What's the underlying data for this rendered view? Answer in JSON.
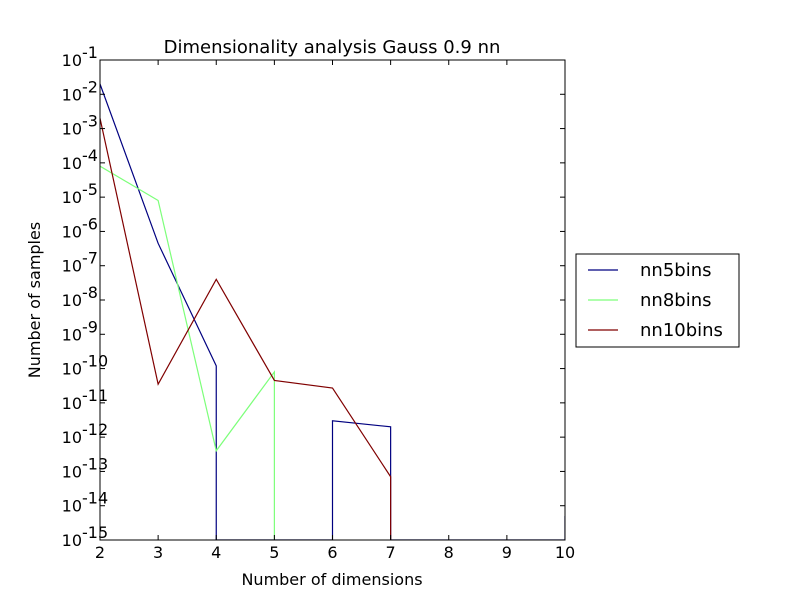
{
  "chart_data": {
    "type": "line",
    "title": "Dimensionality analysis Gauss 0.9 nn",
    "xlabel": "Number of dimensions",
    "ylabel": "Number of samples",
    "xlim": [
      2,
      10
    ],
    "ylim_exp": [
      -15,
      -1
    ],
    "y_scale": "log",
    "grid": false,
    "legend_position": "outside-right",
    "x_ticks": [
      {
        "value": 2,
        "label": "2"
      },
      {
        "value": 3,
        "label": "3"
      },
      {
        "value": 4,
        "label": "4"
      },
      {
        "value": 5,
        "label": "5"
      },
      {
        "value": 6,
        "label": "6"
      },
      {
        "value": 7,
        "label": "7"
      },
      {
        "value": 8,
        "label": "8"
      },
      {
        "value": 9,
        "label": "9"
      },
      {
        "value": 10,
        "label": "10"
      }
    ],
    "y_ticks": [
      {
        "exp": -1,
        "base": "10",
        "sup": "-1"
      },
      {
        "exp": -2,
        "base": "10",
        "sup": "-2"
      },
      {
        "exp": -3,
        "base": "10",
        "sup": "-3"
      },
      {
        "exp": -4,
        "base": "10",
        "sup": "-4"
      },
      {
        "exp": -5,
        "base": "10",
        "sup": "-5"
      },
      {
        "exp": -6,
        "base": "10",
        "sup": "-6"
      },
      {
        "exp": -7,
        "base": "10",
        "sup": "-7"
      },
      {
        "exp": -8,
        "base": "10",
        "sup": "-8"
      },
      {
        "exp": -9,
        "base": "10",
        "sup": "-9"
      },
      {
        "exp": -10,
        "base": "10",
        "sup": "-10"
      },
      {
        "exp": -11,
        "base": "10",
        "sup": "-11"
      },
      {
        "exp": -12,
        "base": "10",
        "sup": "-12"
      },
      {
        "exp": -13,
        "base": "10",
        "sup": "-13"
      },
      {
        "exp": -14,
        "base": "10",
        "sup": "-14"
      },
      {
        "exp": -15,
        "base": "10",
        "sup": "-15"
      }
    ],
    "series": [
      {
        "name": "nn5bins",
        "color": "#000080",
        "points": [
          {
            "x": 2,
            "y": 0.02
          },
          {
            "x": 3,
            "y": 4.5e-07
          },
          {
            "x": 4,
            "y": 1.2e-10
          },
          {
            "x": 4,
            "y": 1e-15
          },
          {
            "x": 6,
            "y": 1e-15
          },
          {
            "x": 6,
            "y": 3e-12
          },
          {
            "x": 7,
            "y": 2e-12
          },
          {
            "x": 7,
            "y": 1e-15
          },
          {
            "x": 10,
            "y": 1e-15
          },
          {
            "x": 10,
            "y": 5e-15
          }
        ]
      },
      {
        "name": "nn8bins",
        "color": "#7dff7a",
        "points": [
          {
            "x": 2,
            "y": 8e-05
          },
          {
            "x": 3,
            "y": 8e-06
          },
          {
            "x": 4,
            "y": 4e-13
          },
          {
            "x": 5,
            "y": 8e-11
          },
          {
            "x": 5,
            "y": 1e-15
          }
        ]
      },
      {
        "name": "nn10bins",
        "color": "#800000",
        "points": [
          {
            "x": 2,
            "y": 0.002
          },
          {
            "x": 3,
            "y": 3.5e-11
          },
          {
            "x": 4,
            "y": 4e-08
          },
          {
            "x": 5,
            "y": 4.5e-11
          },
          {
            "x": 6,
            "y": 2.7e-11
          },
          {
            "x": 7,
            "y": 7e-14
          },
          {
            "x": 7,
            "y": 1e-15
          }
        ]
      }
    ]
  }
}
